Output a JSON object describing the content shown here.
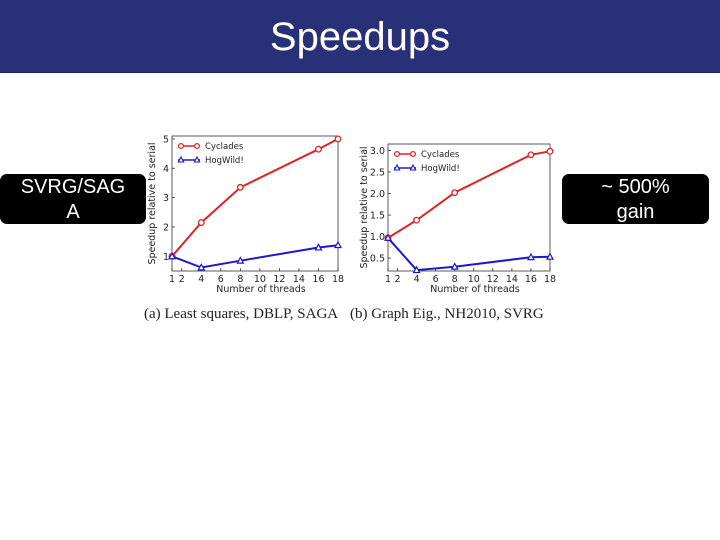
{
  "slide": {
    "title": "Speedups"
  },
  "callouts": {
    "left": [
      "SVRG/SAG",
      "A"
    ],
    "right": [
      "~ 500%",
      "gain"
    ]
  },
  "captions": {
    "a": "(a) Least squares, DBLP, SAGA",
    "b": "(b) Graph Eig., NH2010, SVRG"
  },
  "colors": {
    "title_bar": "#283077",
    "cyclades": "#dd2222",
    "hogwild": "#1a1acc"
  },
  "chart_data": [
    {
      "type": "line",
      "xlabel": "Number of threads",
      "ylabel": "Speedup relative to serial",
      "xticks": [
        "1",
        "2",
        "4",
        "6",
        "8",
        "10",
        "12",
        "14",
        "16",
        "18"
      ],
      "xtick_values": [
        1,
        2,
        4,
        6,
        8,
        10,
        12,
        14,
        16,
        18
      ],
      "yticks": [
        "1",
        "2",
        "3",
        "4",
        "5"
      ],
      "ytick_values": [
        1,
        2,
        3,
        4,
        5
      ],
      "xlim": [
        1,
        18
      ],
      "ylim": [
        0.5,
        5.1
      ],
      "grid": false,
      "legend": "top-left",
      "series": [
        {
          "name": "Cyclades",
          "x": [
            1,
            4,
            8,
            16,
            18
          ],
          "values": [
            1.0,
            2.15,
            3.35,
            4.65,
            5.0
          ]
        },
        {
          "name": "HogWild!",
          "x": [
            1,
            4,
            8,
            16,
            18
          ],
          "values": [
            1.0,
            0.62,
            0.85,
            1.3,
            1.38
          ]
        }
      ]
    },
    {
      "type": "line",
      "xlabel": "Number of threads",
      "ylabel": "Speedup relative to serial",
      "xticks": [
        "1",
        "2",
        "4",
        "6",
        "8",
        "10",
        "12",
        "14",
        "16",
        "18"
      ],
      "xtick_values": [
        1,
        2,
        4,
        6,
        8,
        10,
        12,
        14,
        16,
        18
      ],
      "yticks": [
        "0.5",
        "1.0",
        "1.5",
        "2.0",
        "2.5",
        "3.0"
      ],
      "ytick_values": [
        0.5,
        1.0,
        1.5,
        2.0,
        2.5,
        3.0
      ],
      "xlim": [
        1,
        18
      ],
      "ylim": [
        0.2,
        3.15
      ],
      "grid": false,
      "legend": "top-left",
      "series": [
        {
          "name": "Cyclades",
          "x": [
            1,
            4,
            8,
            16,
            18
          ],
          "values": [
            0.97,
            1.38,
            2.02,
            2.9,
            2.98
          ]
        },
        {
          "name": "HogWild!",
          "x": [
            1,
            4,
            8,
            16,
            18
          ],
          "values": [
            0.97,
            0.22,
            0.3,
            0.52,
            0.53
          ]
        }
      ]
    }
  ]
}
